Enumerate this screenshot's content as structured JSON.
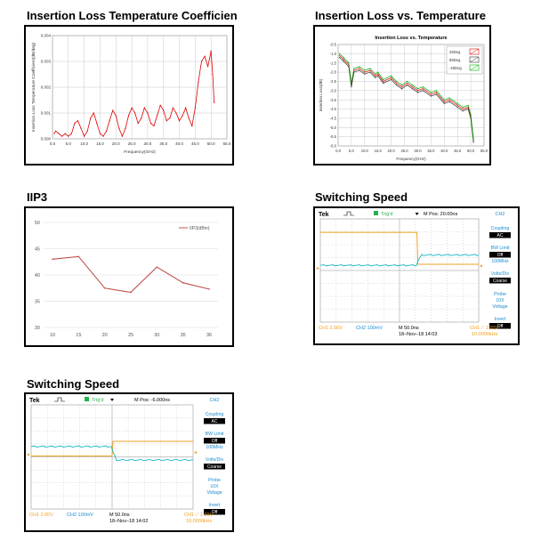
{
  "sections": {
    "ilcoef": "Insertion Loss Temperature Coefficien",
    "ilvt": "Insertion Loss vs. Temperature",
    "iip3": "IIP3",
    "sw1": "Switching Speed",
    "sw2": "Switching Speed"
  },
  "chart_data": [
    {
      "id": "ilcoef",
      "type": "line",
      "title": "",
      "xlabel": "Frequency(GHz)",
      "ylabel": "Insertion Loss Temperature Coefficient(dB/deg)",
      "xlim": [
        0,
        55
      ],
      "ylim": [
        0,
        0.004
      ],
      "xticks": [
        "0.0",
        "5.0",
        "10.0",
        "15.0",
        "20.0",
        "25.0",
        "30.0",
        "35.0",
        "40.0",
        "45.0",
        "50.0",
        "55.0"
      ],
      "yticks": [
        "0.000",
        "0.001",
        "0.002",
        "0.003",
        "0.004"
      ],
      "grid": true,
      "color": "#e00000",
      "series": [
        {
          "x": [
            0.5,
            1,
            2,
            3,
            4,
            5,
            6,
            7,
            8,
            9,
            10,
            11,
            12,
            13,
            14,
            15,
            16,
            17,
            18,
            19,
            20,
            21,
            22,
            23,
            24,
            25,
            26,
            27,
            28,
            29,
            30,
            31,
            32,
            33,
            34,
            35,
            36,
            37,
            38,
            39,
            40,
            41,
            42,
            43,
            44,
            45,
            46,
            47,
            48,
            49,
            50,
            50.5,
            51
          ],
          "y": [
            0.0002,
            0.0003,
            0.0002,
            0.0001,
            0.0002,
            0.0001,
            0.0002,
            0.0006,
            0.0007,
            0.0004,
            0.0001,
            0.0003,
            0.0008,
            0.001,
            0.0006,
            0.0002,
            0.0001,
            0.0003,
            0.0007,
            0.0011,
            0.0009,
            0.0004,
            0.0001,
            0.0004,
            0.0009,
            0.0012,
            0.001,
            0.0006,
            0.0008,
            0.0012,
            0.001,
            0.0006,
            0.0005,
            0.0009,
            0.0013,
            0.0011,
            0.0007,
            0.0008,
            0.0012,
            0.001,
            0.0007,
            0.0009,
            0.0012,
            0.0008,
            0.0005,
            0.0012,
            0.0022,
            0.003,
            0.0032,
            0.0028,
            0.0034,
            0.0025,
            0.0014
          ]
        }
      ]
    },
    {
      "id": "ilvt",
      "type": "line",
      "title": "Insertion Loss vs. Temperature",
      "xlabel": "Frequency(GHz)",
      "ylabel": "Insertion Loss(dB)",
      "xlim": [
        0,
        55
      ],
      "ylim": [
        -6.0,
        -0.5
      ],
      "xticks": [
        "0.0",
        "5.0",
        "10.0",
        "15.0",
        "20.0",
        "25.0",
        "30.0",
        "35.0",
        "40.0",
        "45.0",
        "50.0",
        "55.0"
      ],
      "yticks": [
        "-0.5",
        "-1.0",
        "-1.5",
        "-2.0",
        "-2.5",
        "-3.0",
        "-3.5",
        "-4.0",
        "-4.5",
        "-5.0",
        "-5.5",
        "-6.0"
      ],
      "grid": true,
      "legend_position": "top-right",
      "series": [
        {
          "name": "25Deg",
          "color": "#e00000",
          "x": [
            0.5,
            2,
            4,
            5,
            6,
            8,
            10,
            12,
            14,
            15,
            17,
            20,
            22,
            24,
            26,
            28,
            30,
            32,
            35,
            37,
            40,
            42,
            45,
            47,
            49,
            50,
            51
          ],
          "y": [
            -1.1,
            -1.3,
            -1.6,
            -2.7,
            -1.9,
            -1.8,
            -2.0,
            -1.9,
            -2.2,
            -2.1,
            -2.5,
            -2.3,
            -2.6,
            -2.8,
            -2.6,
            -2.8,
            -3.0,
            -2.9,
            -3.2,
            -3.1,
            -3.6,
            -3.5,
            -3.8,
            -4.0,
            -3.9,
            -4.4,
            -5.7
          ]
        },
        {
          "name": "85Deg",
          "color": "#333333",
          "x": [
            0.5,
            2,
            4,
            5,
            6,
            8,
            10,
            12,
            14,
            15,
            17,
            20,
            22,
            24,
            26,
            28,
            30,
            32,
            35,
            37,
            40,
            42,
            45,
            47,
            49,
            50,
            51
          ],
          "y": [
            -1.2,
            -1.4,
            -1.7,
            -2.8,
            -2.0,
            -1.9,
            -2.1,
            -2.0,
            -2.3,
            -2.2,
            -2.6,
            -2.4,
            -2.7,
            -2.9,
            -2.7,
            -2.9,
            -3.1,
            -3.0,
            -3.3,
            -3.2,
            -3.7,
            -3.6,
            -3.9,
            -4.1,
            -4.0,
            -4.5,
            -5.8
          ]
        },
        {
          "name": "-40Deg",
          "color": "#00aa00",
          "x": [
            0.5,
            2,
            4,
            5,
            6,
            8,
            10,
            12,
            14,
            15,
            17,
            20,
            22,
            24,
            26,
            28,
            30,
            32,
            35,
            37,
            40,
            42,
            45,
            47,
            49,
            50,
            51
          ],
          "y": [
            -1.0,
            -1.2,
            -1.5,
            -2.6,
            -1.8,
            -1.7,
            -1.9,
            -1.8,
            -2.1,
            -2.0,
            -2.4,
            -2.2,
            -2.5,
            -2.7,
            -2.5,
            -2.7,
            -2.9,
            -2.8,
            -3.1,
            -3.0,
            -3.5,
            -3.4,
            -3.7,
            -3.9,
            -3.8,
            -4.3,
            -5.6
          ]
        }
      ]
    },
    {
      "id": "iip3",
      "type": "line",
      "title": "",
      "xlabel": "",
      "ylabel": "",
      "categories": [
        "10",
        "15",
        "20",
        "25",
        "30",
        "35",
        "36"
      ],
      "ylim": [
        30,
        50
      ],
      "yticks": [
        "50",
        "45",
        "40",
        "35",
        "30"
      ],
      "grid": true,
      "legend_position": "top-right",
      "series": [
        {
          "name": "IIP3(dBm)",
          "color": "#c0504d",
          "values": [
            43,
            43.5,
            37.5,
            36.7,
            41.5,
            38.5,
            37.3
          ]
        }
      ]
    }
  ],
  "scopes": [
    {
      "id": "sw1",
      "brand": "Tek",
      "trig": "Trig'd",
      "mpos": "M Pos: 20.00ns",
      "ch_label": "CH2",
      "coupling_label": "Coupling",
      "coupling_value": "AC",
      "bw_label": "BW Limit",
      "bw_value": "Off",
      "bw_sub": "100MHz",
      "vdiv_label": "Volts/Div",
      "vdiv_value": "Coarse",
      "probe_label": "Probe",
      "probe_value": "10X",
      "probe_sub": "Voltage",
      "invert_label": "Invert",
      "invert_value": "Off",
      "ch1": "CH1  2.00V",
      "ch2": "CH2  100mV",
      "m": "M 50.0ns",
      "date": "18–Nov–18 14:03",
      "trigch": "CH1  ⟋  1.01V",
      "freq": "10.0000kHz",
      "transition_div": 6.1,
      "trace_ch1_high": 0.13,
      "trace_ch1_low": 0.44,
      "trace_ch2_before": 0.45,
      "trace_ch2_after": 0.35
    },
    {
      "id": "sw2",
      "brand": "Tek",
      "trig": "Trig'd",
      "mpos": "M Pos: -6.000ns",
      "ch_label": "CH2",
      "coupling_label": "Coupling",
      "coupling_value": "AC",
      "bw_label": "BW Limit",
      "bw_value": "Off",
      "bw_sub": "100MHz",
      "vdiv_label": "Volts/Div",
      "vdiv_value": "Coarse",
      "probe_label": "Probe",
      "probe_value": "10X",
      "probe_sub": "Voltage",
      "invert_label": "Invert",
      "invert_value": "Off",
      "ch1": "CH1  2.00V",
      "ch2": "CH2  100mV",
      "m": "M 50.0ns",
      "date": "18–Nov–18 14:02",
      "trigch": "CH1  ⟋  1.01V",
      "freq": "10.0000kHz",
      "transition_div": 5.0,
      "trace_ch1_low": 0.49,
      "trace_ch1_high": 0.35,
      "trace_ch2_before": 0.4,
      "trace_ch2_after": 0.53
    }
  ]
}
